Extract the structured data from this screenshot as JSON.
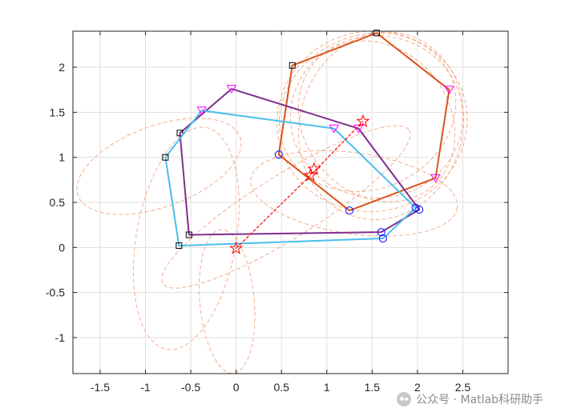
{
  "chart_data": {
    "type": "line",
    "title": "",
    "xlabel": "",
    "ylabel": "",
    "xlim": [
      -1.8,
      3.0
    ],
    "ylim": [
      -1.4,
      2.4
    ],
    "xticks": [
      -1.5,
      -1,
      -0.5,
      0,
      0.5,
      1,
      1.5,
      2,
      2.5
    ],
    "yticks": [
      -1,
      -0.5,
      0,
      0.5,
      1,
      1.5,
      2
    ],
    "xtick_labels": [
      "-1.5",
      "-1",
      "-0.5",
      "0",
      "0.5",
      "1",
      "1.5",
      "2",
      "2.5"
    ],
    "ytick_labels": [
      "-1",
      "-0.5",
      "0",
      "0.5",
      "1",
      "1.5",
      "2"
    ],
    "grid": true,
    "legend": "none",
    "colors": {
      "orange": "#d95319",
      "purple": "#7e2f8e",
      "cyan": "#4dbeee",
      "red": "#ff0000",
      "blue_marker": "#0000ff",
      "magenta_marker": "#ff00ff",
      "dashed": "#f4a582"
    },
    "polygons": [
      {
        "color_key": "orange",
        "vertices": [
          [
            1.55,
            2.38
          ],
          [
            2.35,
            1.75
          ],
          [
            2.2,
            0.77
          ],
          [
            1.25,
            0.41
          ],
          [
            0.47,
            1.03
          ],
          [
            0.62,
            2.02
          ]
        ],
        "markers": [
          "square",
          "triangle-down",
          "triangle-down",
          "circle",
          "circle",
          "square"
        ]
      },
      {
        "color_key": "purple",
        "vertices": [
          [
            -0.05,
            1.76
          ],
          [
            1.35,
            1.32
          ],
          [
            2.02,
            0.42
          ],
          [
            1.6,
            0.17
          ],
          [
            -0.52,
            0.14
          ],
          [
            -0.62,
            1.27
          ]
        ],
        "markers": [
          "triangle-down",
          "triangle-down",
          "circle",
          "circle",
          "square",
          "square"
        ]
      },
      {
        "color_key": "cyan",
        "vertices": [
          [
            -0.38,
            1.52
          ],
          [
            1.08,
            1.32
          ],
          [
            1.98,
            0.44
          ],
          [
            1.62,
            0.1
          ],
          [
            -0.63,
            0.02
          ],
          [
            -0.78,
            1.0
          ]
        ],
        "markers": [
          "triangle-down",
          "triangle-down",
          "circle",
          "circle",
          "square",
          "square"
        ]
      }
    ],
    "red_path": [
      [
        0.0,
        -0.01
      ],
      [
        0.82,
        0.8
      ],
      [
        1.4,
        1.4
      ]
    ],
    "red_stars": [
      [
        0.0,
        -0.01
      ],
      [
        0.82,
        0.8
      ],
      [
        0.86,
        0.87
      ],
      [
        1.4,
        1.4
      ]
    ],
    "dashed_curves": [
      {
        "cx": 1.55,
        "cy": 1.45,
        "rx": 0.95,
        "ry": 0.9,
        "rot": 0
      },
      {
        "cx": 1.5,
        "cy": 1.4,
        "rx": 1.05,
        "ry": 1.0,
        "rot": 10
      },
      {
        "cx": 1.6,
        "cy": 1.35,
        "rx": 0.9,
        "ry": 1.05,
        "rot": -15
      },
      {
        "cx": 1.45,
        "cy": 1.5,
        "rx": 1.0,
        "ry": 0.85,
        "rot": 25
      },
      {
        "cx": 1.55,
        "cy": 1.4,
        "rx": 0.8,
        "ry": 0.95,
        "rot": 40
      },
      {
        "cx": -0.55,
        "cy": 0.1,
        "rx": 0.55,
        "ry": 1.25,
        "rot": -10
      },
      {
        "cx": -0.85,
        "cy": 0.9,
        "rx": 0.95,
        "ry": 0.45,
        "rot": 20
      },
      {
        "cx": -0.1,
        "cy": -0.6,
        "rx": 0.3,
        "ry": 0.8,
        "rot": 5
      },
      {
        "cx": 0.55,
        "cy": 0.45,
        "rx": 1.6,
        "ry": 0.35,
        "rot": 32
      },
      {
        "cx": 1.3,
        "cy": 0.6,
        "rx": 1.15,
        "ry": 0.45,
        "rot": -8
      }
    ]
  },
  "watermark": {
    "text": "公众号 · Matlab科研助手"
  }
}
